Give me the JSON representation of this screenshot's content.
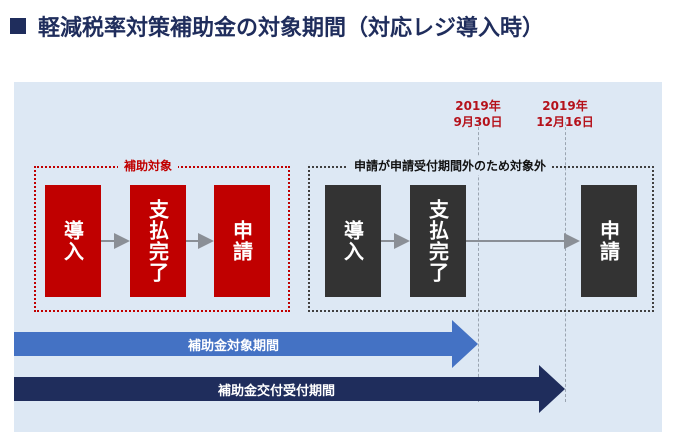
{
  "title": "軽減税率対策補助金の対象期間（対応レジ導入時）",
  "dates": [
    {
      "year": "2019年",
      "day": "9月30日"
    },
    {
      "year": "2019年",
      "day": "12月16日"
    }
  ],
  "groups": {
    "eligible_label": "補助対象",
    "ineligible_label": "申請が申請受付期間外のため対象外"
  },
  "steps_eligible": [
    "導入",
    "支払完了",
    "申請"
  ],
  "steps_ineligible": [
    "導入",
    "支払完了",
    "申請"
  ],
  "periods": {
    "subsidy_period": "補助金対象期間",
    "application_period": "補助金交付受付期間"
  },
  "colors": {
    "title": "#1f2d5c",
    "eligible": "#c00000",
    "ineligible": "#333333",
    "period_light": "#4472c4",
    "period_dark": "#1f2d5c",
    "date_text": "#b5121b",
    "panel": "#dde8f4"
  }
}
